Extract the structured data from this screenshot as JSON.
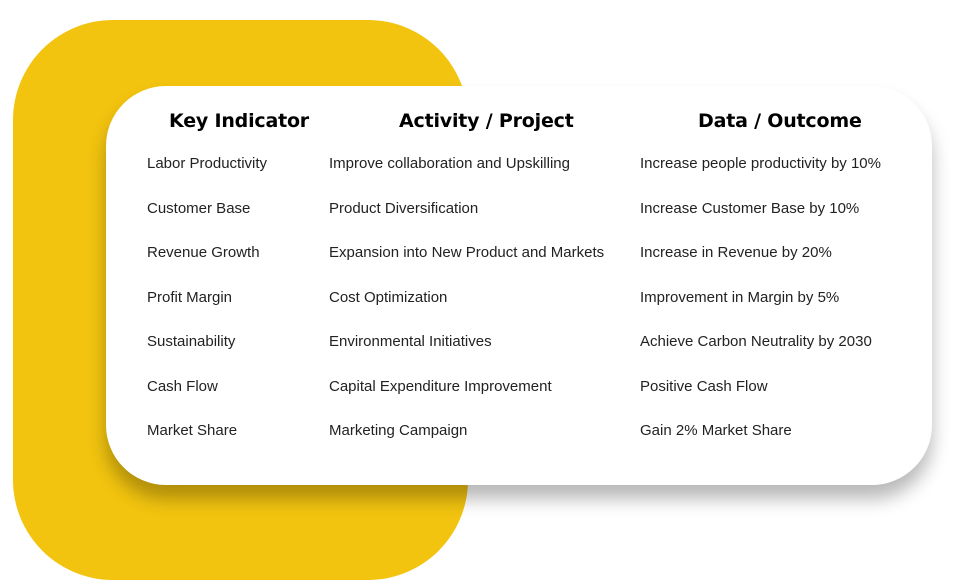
{
  "colors": {
    "accent": "#f2c40f",
    "card": "#ffffff",
    "text": "#222222"
  },
  "table": {
    "headers": [
      "Key Indicator",
      "Activity / Project",
      "Data / Outcome"
    ],
    "rows": [
      [
        "Labor Productivity",
        "Improve collaboration and Upskilling",
        "Increase people productivity by 10%"
      ],
      [
        "Customer Base",
        "Product Diversification",
        "Increase Customer Base by 10%"
      ],
      [
        "Revenue Growth",
        "Expansion into New Product and Markets",
        "Increase in Revenue by 20%"
      ],
      [
        "Profit Margin",
        "Cost Optimization",
        "Improvement in Margin by 5%"
      ],
      [
        "Sustainability",
        "Environmental Initiatives",
        "Achieve Carbon Neutrality by 2030"
      ],
      [
        "Cash Flow",
        "Capital Expenditure Improvement",
        "Positive Cash Flow"
      ],
      [
        "Market Share",
        "Marketing Campaign",
        "Gain 2% Market Share"
      ]
    ]
  }
}
